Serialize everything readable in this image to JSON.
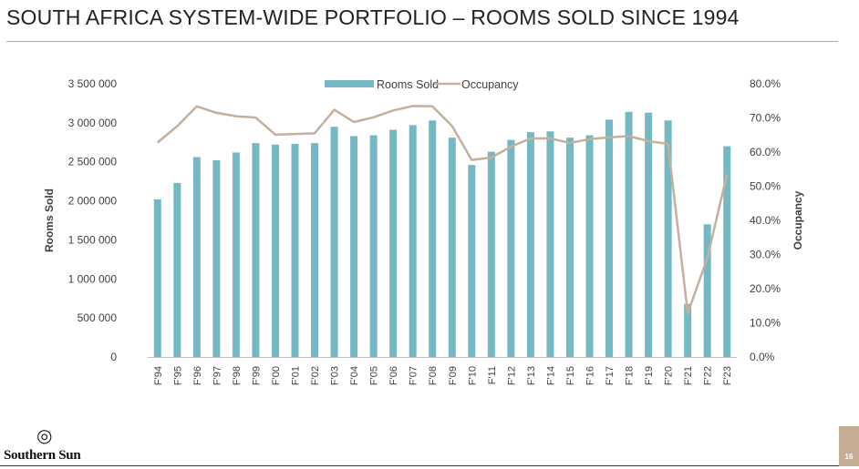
{
  "slide": {
    "title": "SOUTH AFRICA SYSTEM-WIDE PORTFOLIO – ROOMS SOLD SINCE 1994",
    "page_number": "16",
    "logo_text": "Southern Sun",
    "logo_icon": "southern-sun-logo-icon"
  },
  "colors": {
    "bars": "#74b8c3",
    "line": "#c4b09c",
    "accent": "#c5ad95",
    "rule": "#b4a89a"
  },
  "chart_data": {
    "type": "bar",
    "categories": [
      "F'94",
      "F'95",
      "F'96",
      "F'97",
      "F'98",
      "F'99",
      "F'00",
      "F'01",
      "F'02",
      "F'03",
      "F'04",
      "F'05",
      "F'06",
      "F'07",
      "F'08",
      "F'09",
      "F'10",
      "F'11",
      "F'12",
      "F'13",
      "F'14",
      "F'15",
      "F'16",
      "F'17",
      "F'18",
      "F'19",
      "F'20",
      "F'21",
      "F'22",
      "F'23"
    ],
    "series": [
      {
        "name": "Rooms Sold",
        "type": "bar",
        "axis": "left",
        "values": [
          2020000,
          2230000,
          2560000,
          2520000,
          2620000,
          2740000,
          2720000,
          2730000,
          2740000,
          2950000,
          2830000,
          2840000,
          2910000,
          2970000,
          3030000,
          2810000,
          2460000,
          2630000,
          2780000,
          2880000,
          2890000,
          2810000,
          2840000,
          3040000,
          3140000,
          3130000,
          3030000,
          680000,
          1700000,
          2700000
        ]
      },
      {
        "name": "Occupancy",
        "type": "line",
        "axis": "right",
        "values": [
          62.8,
          67.6,
          73.4,
          71.5,
          70.5,
          70.1,
          65.1,
          65.3,
          65.5,
          72.4,
          68.8,
          70.2,
          72.2,
          73.5,
          73.4,
          67.6,
          57.7,
          58.4,
          61.6,
          64.0,
          64.0,
          62.7,
          63.8,
          64.3,
          64.7,
          63.2,
          62.4,
          12.8,
          29.0,
          53.5
        ]
      }
    ],
    "ylabel": "Rooms Sold",
    "y2label": "Occupancy",
    "ylim": [
      0,
      3500000
    ],
    "y2lim": [
      0,
      80
    ],
    "yticks": [
      "0",
      "500 000",
      "1 000 000",
      "1 500 000",
      "2 000 000",
      "2 500 000",
      "3 000 000",
      "3 500 000"
    ],
    "y2ticks": [
      "0.0%",
      "10.0%",
      "20.0%",
      "30.0%",
      "40.0%",
      "50.0%",
      "60.0%",
      "70.0%",
      "80.0%"
    ],
    "grid": false,
    "legend_position": "top-center"
  }
}
